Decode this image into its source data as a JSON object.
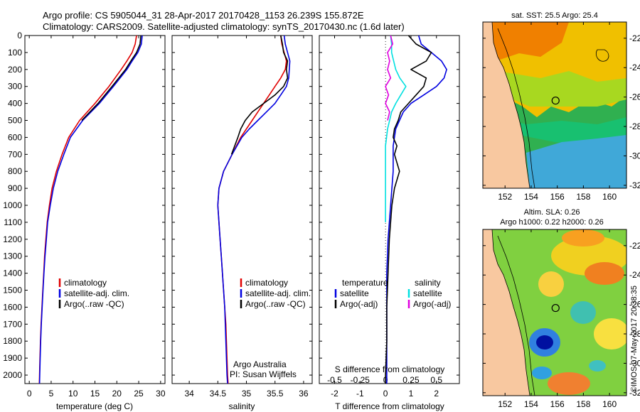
{
  "header": {
    "line1": "Argo profile: CS 5905044_31 28-Apr-2017 20170428_1153 26.239S 155.872E",
    "line2": "Climatology: CARS2009. Satellite-adjusted climatology: synTS_20170430.nc (1.6d later)"
  },
  "colors": {
    "climatology": "#e00000",
    "satellite": "#0000e0",
    "argo": "#000000",
    "sal_sat": "#00e0e0",
    "sal_argo": "#e000e0",
    "land": "#f8c8a0"
  },
  "credit": "©IMOS 07-May-2017 20:38:35",
  "chart_data": [
    {
      "id": "temperature",
      "type": "line",
      "xlabel": "temperature (deg C)",
      "ylabel": "",
      "xlim": [
        -1,
        31
      ],
      "xticks": [
        0,
        5,
        10,
        15,
        20,
        25,
        30
      ],
      "ylim": [
        0,
        2050
      ],
      "yticks": [
        0,
        100,
        200,
        300,
        400,
        500,
        600,
        700,
        800,
        900,
        1000,
        1100,
        1200,
        1300,
        1400,
        1500,
        1600,
        1700,
        1800,
        1900,
        2000
      ],
      "depth": [
        0,
        50,
        100,
        150,
        200,
        300,
        400,
        500,
        600,
        700,
        800,
        900,
        1000,
        1100,
        1200,
        1300,
        1400,
        1500,
        1600,
        1700,
        1800,
        1900,
        2000,
        2050
      ],
      "series": [
        {
          "name": "climatology",
          "color": "#e00000",
          "values": [
            24.5,
            24.2,
            23.5,
            22.3,
            21.0,
            18.2,
            15.0,
            11.5,
            9.0,
            7.5,
            6.2,
            5.2,
            4.6,
            4.1,
            3.8,
            3.5,
            3.3,
            3.1,
            2.9,
            2.7,
            2.55,
            2.45,
            2.35,
            2.3
          ]
        },
        {
          "name": "satellite-adj. clim.",
          "color": "#0000e0",
          "values": [
            25.8,
            25.6,
            24.8,
            23.5,
            22.3,
            19.2,
            16.0,
            12.2,
            9.4,
            7.9,
            6.5,
            5.5,
            4.8,
            4.2,
            3.9,
            3.6,
            3.35,
            3.15,
            2.95,
            2.75,
            2.6,
            2.5,
            2.4,
            2.35
          ]
        },
        {
          "name": "Argo(..raw -QC)",
          "color": "#000000",
          "values": [
            25.5,
            25.3,
            24.5,
            23.2,
            22.0,
            18.9,
            15.7,
            12.0
          ]
        }
      ],
      "legend": [
        "climatology",
        "satellite-adj. clim.",
        "Argo(..raw -QC)"
      ]
    },
    {
      "id": "salinity",
      "type": "line",
      "xlabel": "salinity",
      "xlim": [
        33.7,
        36.15
      ],
      "xticks": [
        34,
        34.5,
        35,
        35.5,
        36
      ],
      "ylim": [
        0,
        2050
      ],
      "depth": [
        0,
        50,
        100,
        150,
        200,
        250,
        300,
        350,
        400,
        450,
        500,
        550,
        600,
        700,
        800,
        900,
        1000,
        1100,
        1200,
        1300,
        1400,
        1500,
        1600,
        1700,
        1800,
        1900,
        2000,
        2050
      ],
      "series": [
        {
          "name": "climatology",
          "color": "#e00000",
          "values": [
            35.6,
            35.62,
            35.66,
            35.7,
            35.68,
            35.6,
            35.5,
            35.4,
            35.3,
            35.2,
            35.1,
            35.0,
            34.9,
            34.75,
            34.6,
            34.52,
            34.5,
            34.52,
            34.54,
            34.56,
            34.58,
            34.6,
            34.62,
            34.64,
            34.65,
            34.66,
            34.67,
            34.68
          ]
        },
        {
          "name": "satellite-adj. clim.",
          "color": "#0000e0",
          "values": [
            35.66,
            35.68,
            35.72,
            35.76,
            35.75,
            35.74,
            35.7,
            35.6,
            35.5,
            35.35,
            35.2,
            35.05,
            34.92,
            34.75,
            34.6,
            34.52,
            34.5,
            34.52,
            34.54,
            34.56,
            34.58,
            34.6,
            34.62,
            34.63,
            34.64,
            34.65,
            34.66,
            34.67
          ]
        },
        {
          "name": "Argo(..raw -QC)",
          "color": "#000000",
          "values": [
            35.6,
            35.63,
            35.65,
            35.72,
            35.7,
            35.72,
            35.65,
            35.5,
            35.3,
            35.1,
            34.98,
            34.9,
            34.85,
            34.74
          ]
        }
      ],
      "legend": [
        "climatology",
        "satellite-adj. clim.",
        "Argo(..raw -QC)"
      ],
      "annotation": {
        "line1": "Argo Australia",
        "line2": "PI: Susan Wijffels"
      }
    },
    {
      "id": "difference",
      "type": "line",
      "xlabel": "T difference from climatology",
      "xlabel_top": "S difference from climatology",
      "xlim": [
        -2.6,
        2.9
      ],
      "xticks": [
        -2,
        -1,
        0,
        1,
        2
      ],
      "sticks_label": [
        "-0.5",
        "-0.25",
        "0",
        "0.25",
        "0.5"
      ],
      "sticks_value": [
        -0.5,
        -0.25,
        0,
        0.25,
        0.5
      ],
      "s_scale": 4,
      "ylim": [
        0,
        2050
      ],
      "t_depth": [
        0,
        50,
        100,
        150,
        200,
        250,
        300,
        350,
        400,
        450,
        500,
        550,
        600,
        650,
        700,
        800,
        900,
        1000,
        1200,
        1400,
        1600,
        1800,
        2000,
        2050
      ],
      "s_depth": [
        0,
        50,
        100,
        150,
        200,
        250,
        300,
        350,
        400,
        450,
        500,
        550,
        600,
        650,
        700,
        800,
        900,
        1000,
        1100
      ],
      "series": [
        {
          "name": "temperature satellite",
          "color": "#0000e0",
          "kind": "T",
          "values": [
            1.3,
            1.4,
            1.8,
            2.2,
            2.4,
            2.3,
            2.0,
            1.5,
            1.0,
            0.7,
            0.55,
            0.4,
            0.35,
            0.3,
            0.3,
            0.3,
            0.25,
            0.2,
            0.1,
            0.05,
            0.05,
            0.05,
            0.05,
            0.05
          ]
        },
        {
          "name": "temperature Argo(-adj)",
          "color": "#000000",
          "kind": "T",
          "values": [
            0.9,
            1.2,
            1.8,
            1.6,
            1.0,
            1.6,
            1.5,
            1.2,
            0.9,
            0.6,
            0.5,
            0.35,
            0.3,
            0.45,
            0.35,
            0.55,
            0.35,
            0.25,
            0.15,
            0.1,
            0.05,
            0.05,
            0.0,
            0.0
          ]
        },
        {
          "name": "salinity satellite",
          "color": "#00e0e0",
          "kind": "S",
          "values": [
            0.05,
            0.06,
            0.06,
            0.08,
            0.1,
            0.14,
            0.2,
            0.15,
            0.1,
            0.06,
            0.04,
            0.02,
            0.01,
            0.0,
            0.0,
            0.0,
            0.0,
            0.0,
            0.0
          ]
        },
        {
          "name": "salinity Argo(-adj)",
          "color": "#e000e0",
          "kind": "S",
          "values": [
            0.05,
            0.07,
            0.02,
            0.04,
            0.02,
            0.05,
            0.0,
            0.03,
            0.0,
            0.04,
            0.02,
            null,
            null,
            null,
            null,
            null,
            null,
            null,
            null
          ]
        }
      ],
      "legend_left": {
        "title": "temperature",
        "items": [
          "satellite",
          "Argo(-adj)"
        ]
      },
      "legend_right": {
        "title": "salinity",
        "items": [
          "satellite",
          "Argo(-adj)"
        ]
      }
    },
    {
      "id": "sst-map",
      "type": "heatmap",
      "title": "sat. SST: 25.5 Argo: 25.4",
      "xlim": [
        150.3,
        161.3
      ],
      "ylim": [
        -32.2,
        -20.9
      ],
      "xticks": [
        152,
        154,
        156,
        158,
        160
      ],
      "yticks": [
        -22,
        -24,
        -26,
        -28,
        -30,
        -32
      ],
      "argo_position": {
        "lon": 155.87,
        "lat": -26.24
      }
    },
    {
      "id": "sla-map",
      "type": "heatmap",
      "title_line1": "Altim. SLA: 0.26",
      "title_line2": "Argo h1000: 0.22 h2000: 0.26",
      "xlim": [
        150.3,
        161.3
      ],
      "ylim": [
        -32.2,
        -20.9
      ],
      "xticks": [
        152,
        154,
        156,
        158,
        160
      ],
      "yticks": [
        -22,
        -24,
        -26,
        -28,
        -30,
        -32
      ],
      "argo_position": {
        "lon": 155.87,
        "lat": -26.24
      }
    }
  ]
}
